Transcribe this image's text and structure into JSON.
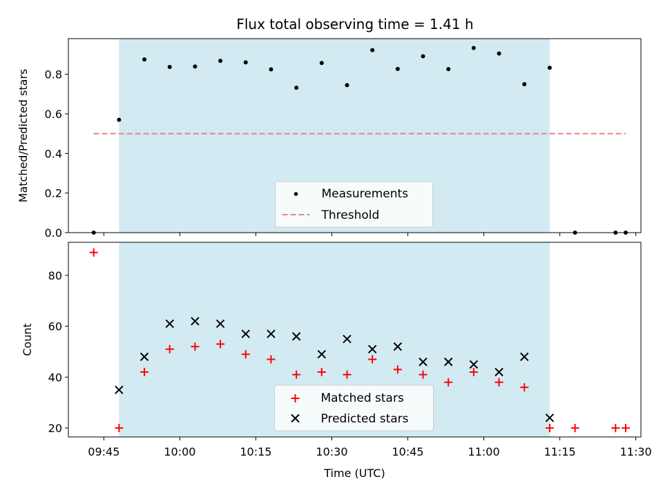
{
  "colors": {
    "band": "#add8e6",
    "measurement": "#000000",
    "threshold": "#f08080",
    "matched": "#ff0000",
    "predicted": "#000000"
  },
  "chart_data": [
    {
      "type": "scatter",
      "title": "Flux total observing time = 1.41 h",
      "xlabel": "",
      "ylabel": "Matched/Predicted stars",
      "xlim": [
        "09:38",
        "11:31"
      ],
      "ylim": [
        0,
        0.98
      ],
      "yticks": [
        0.0,
        0.2,
        0.4,
        0.6,
        0.8
      ],
      "ytick_labels": [
        "0.0",
        "0.2",
        "0.4",
        "0.6",
        "0.8"
      ],
      "legend_placement": "lower center",
      "observing_window": [
        "09:48",
        "11:13"
      ],
      "threshold": {
        "name": "Threshold",
        "value": 0.5,
        "x_range": [
          "09:43",
          "11:28"
        ]
      },
      "series": [
        {
          "name": "Measurements",
          "x": [
            "09:43",
            "09:48",
            "09:53",
            "09:58",
            "10:03",
            "10:08",
            "10:13",
            "10:18",
            "10:23",
            "10:28",
            "10:33",
            "10:38",
            "10:43",
            "10:48",
            "10:53",
            "10:58",
            "11:03",
            "11:08",
            "11:13",
            "11:18",
            "11:26",
            "11:28"
          ],
          "y": [
            0.0,
            0.57,
            0.875,
            0.837,
            0.839,
            0.868,
            0.86,
            0.825,
            0.732,
            0.857,
            0.745,
            0.922,
            0.827,
            0.891,
            0.826,
            0.933,
            0.905,
            0.75,
            0.833,
            0.0,
            0.0,
            0.0
          ]
        }
      ]
    },
    {
      "type": "scatter",
      "title": "",
      "xlabel": "Time (UTC)",
      "ylabel": "Count",
      "xlim": [
        "09:38",
        "11:31"
      ],
      "ylim": [
        16.5,
        93
      ],
      "xticks": [
        "09:45",
        "10:00",
        "10:15",
        "10:30",
        "10:45",
        "11:00",
        "11:15",
        "11:30"
      ],
      "yticks": [
        20,
        40,
        60,
        80
      ],
      "ytick_labels": [
        "20",
        "40",
        "60",
        "80"
      ],
      "legend_placement": "lower center",
      "observing_window": [
        "09:48",
        "11:13"
      ],
      "series": [
        {
          "name": "Matched stars",
          "x": [
            "09:43",
            "09:48",
            "09:53",
            "09:58",
            "10:03",
            "10:08",
            "10:13",
            "10:18",
            "10:23",
            "10:28",
            "10:33",
            "10:38",
            "10:43",
            "10:48",
            "10:53",
            "10:58",
            "11:03",
            "11:08",
            "11:13",
            "11:18",
            "11:26",
            "11:28"
          ],
          "y": [
            89,
            20,
            42,
            51,
            52,
            53,
            49,
            47,
            41,
            42,
            41,
            47,
            43,
            41,
            38,
            42,
            38,
            36,
            20,
            20,
            20,
            20
          ]
        },
        {
          "name": "Predicted stars",
          "x": [
            "09:48",
            "09:53",
            "09:58",
            "10:03",
            "10:08",
            "10:13",
            "10:18",
            "10:23",
            "10:28",
            "10:33",
            "10:38",
            "10:43",
            "10:48",
            "10:53",
            "10:58",
            "11:03",
            "11:08",
            "11:13"
          ],
          "y": [
            35,
            48,
            61,
            62,
            61,
            57,
            57,
            56,
            49,
            55,
            51,
            52,
            46,
            46,
            45,
            42,
            48,
            24
          ]
        }
      ]
    }
  ]
}
